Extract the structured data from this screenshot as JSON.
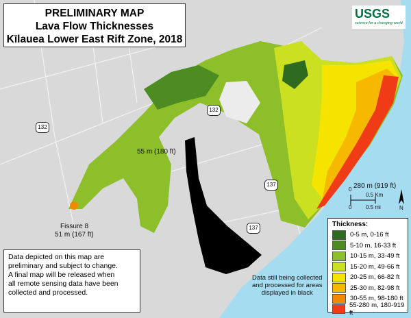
{
  "title": {
    "line1": "PRELIMINARY MAP",
    "line2": "Lava Flow Thicknesses",
    "line3": "Kīlauea Lower East Rift Zone, 2018"
  },
  "logo": {
    "name": "USGS",
    "tagline": "science for a changing world"
  },
  "roads": [
    "132",
    "132",
    "137",
    "137"
  ],
  "annotations": {
    "peak_west": "55 m (180 ft)",
    "fissure_name": "Fissure 8",
    "fissure_value": "51 m (167 ft)",
    "peak_coast": "280 m (919 ft)"
  },
  "scale": {
    "km_zero": "0",
    "km": "0.5 Km",
    "mi_zero": "0",
    "mi": "0.5 mi",
    "north": "N"
  },
  "note": [
    "Data depicted on this map are",
    "preliminary and subject to change.",
    "A final map will be released when",
    "all remote sensing data have been",
    "collected and processed."
  ],
  "black_note": [
    "Data still being collected",
    "and processed for areas",
    "displayed in black"
  ],
  "legend": {
    "title": "Thickness:",
    "items": [
      {
        "label": "0-5 m, 0-16 ft",
        "color": "#2e6b1f"
      },
      {
        "label": "5-10 m, 16-33 ft",
        "color": "#4d8c22"
      },
      {
        "label": "10-15 m, 33-49 ft",
        "color": "#8dbf2a"
      },
      {
        "label": "15-20 m, 49-66 ft",
        "color": "#cbe021"
      },
      {
        "label": "20-25 m, 66-82 ft",
        "color": "#f4e400"
      },
      {
        "label": "25-30 m, 82-98 ft",
        "color": "#f6b900"
      },
      {
        "label": "30-55 m, 98-180 ft",
        "color": "#f28a00"
      },
      {
        "label": "55-280 m, 180-919 ft",
        "color": "#f03c16"
      }
    ]
  }
}
